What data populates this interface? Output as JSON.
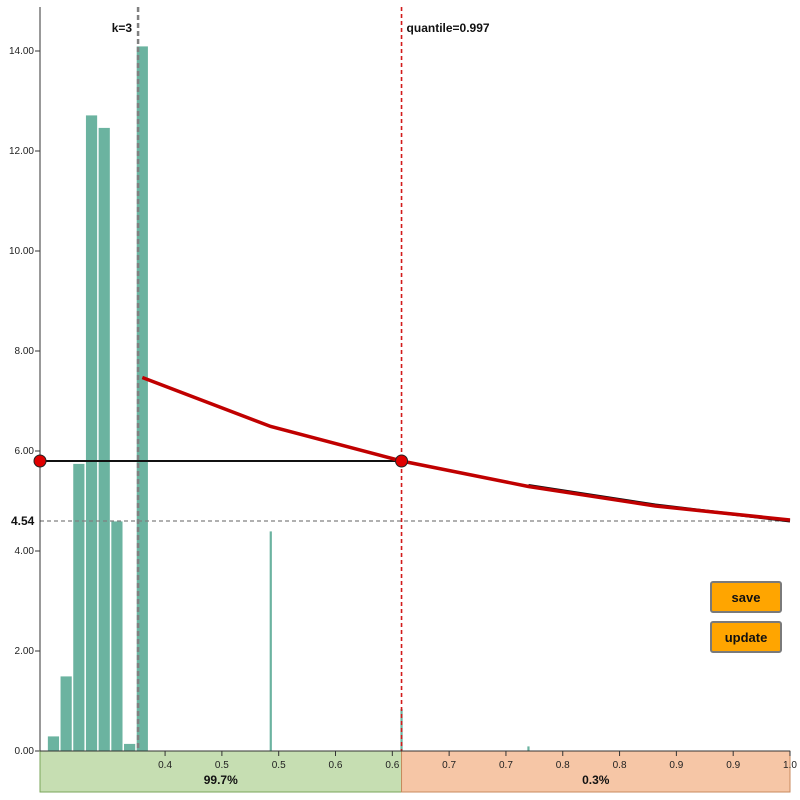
{
  "chart_data": {
    "type": "bar",
    "ylim": [
      0,
      14.5
    ],
    "y_ticks": [
      0,
      2,
      4,
      6,
      8,
      10,
      12,
      14
    ],
    "y_tick_labels": [
      "0.00",
      "2.00",
      "4.00",
      "6.00",
      "8.00",
      "10.00",
      "12.00",
      "14.00"
    ],
    "x_tick_labels": [
      "0.4",
      "0.5",
      "0.5",
      "0.6",
      "0.6",
      "0.7",
      "0.7",
      "0.8",
      "0.8",
      "0.9",
      "0.9",
      "1.0"
    ],
    "bars": [
      {
        "pos": 0.035,
        "value": 0.3
      },
      {
        "pos": 0.068,
        "value": 1.5
      },
      {
        "pos": 0.101,
        "value": 5.75
      },
      {
        "pos": 0.134,
        "value": 12.72
      },
      {
        "pos": 0.167,
        "value": 12.47
      },
      {
        "pos": 0.2,
        "value": 4.6
      },
      {
        "pos": 0.233,
        "value": 0.15
      },
      {
        "pos": 0.266,
        "value": 14.1
      },
      {
        "pos": 0.6,
        "value": 4.4
      },
      {
        "pos": 0.94,
        "value": 0.85
      },
      {
        "pos": 1.27,
        "value": 0.1
      }
    ],
    "red_curve": [
      {
        "pos": 0.266,
        "value": 7.43
      },
      {
        "pos": 0.6,
        "value": 6.45
      },
      {
        "pos": 0.94,
        "value": 5.76
      },
      {
        "pos": 1.27,
        "value": 5.25
      },
      {
        "pos": 1.6,
        "value": 4.86
      },
      {
        "pos": 1.95,
        "value": 4.58
      }
    ],
    "black_curve": [
      {
        "pos": 1.27,
        "value": 5.27
      },
      {
        "pos": 1.6,
        "value": 4.88
      },
      {
        "pos": 1.95,
        "value": 4.56
      }
    ],
    "horizontal_line_value": 5.76,
    "horizontal_line_range": [
      0,
      0.94
    ],
    "threshold_value": 4.54,
    "threshold_label": "4.54",
    "k_line_pos": 0.255,
    "k_label": "k=3",
    "quantile_line_pos": 0.94,
    "quantile_label": "quantile=0.997",
    "marker_positions": [
      {
        "pos": 0,
        "value": 5.76
      },
      {
        "pos": 0.94,
        "value": 5.76
      }
    ],
    "regions": [
      {
        "from": 0,
        "to": 0.94,
        "label": "99.7%",
        "color": "#c6deb2",
        "border": "#7aa55a"
      },
      {
        "from": 0.94,
        "to": 1.95,
        "label": "0.3%",
        "color": "#f6c6a6",
        "border": "#c88a5e"
      }
    ]
  },
  "colors": {
    "bar": "#6bb3a0",
    "red": "#c00000",
    "marker": "#e00000",
    "quantile_line": "#d21a1a",
    "k_line": "#808080",
    "threshold_line": "#808080",
    "button": "#ffa500"
  },
  "buttons": {
    "save_label": "save",
    "update_label": "update"
  }
}
